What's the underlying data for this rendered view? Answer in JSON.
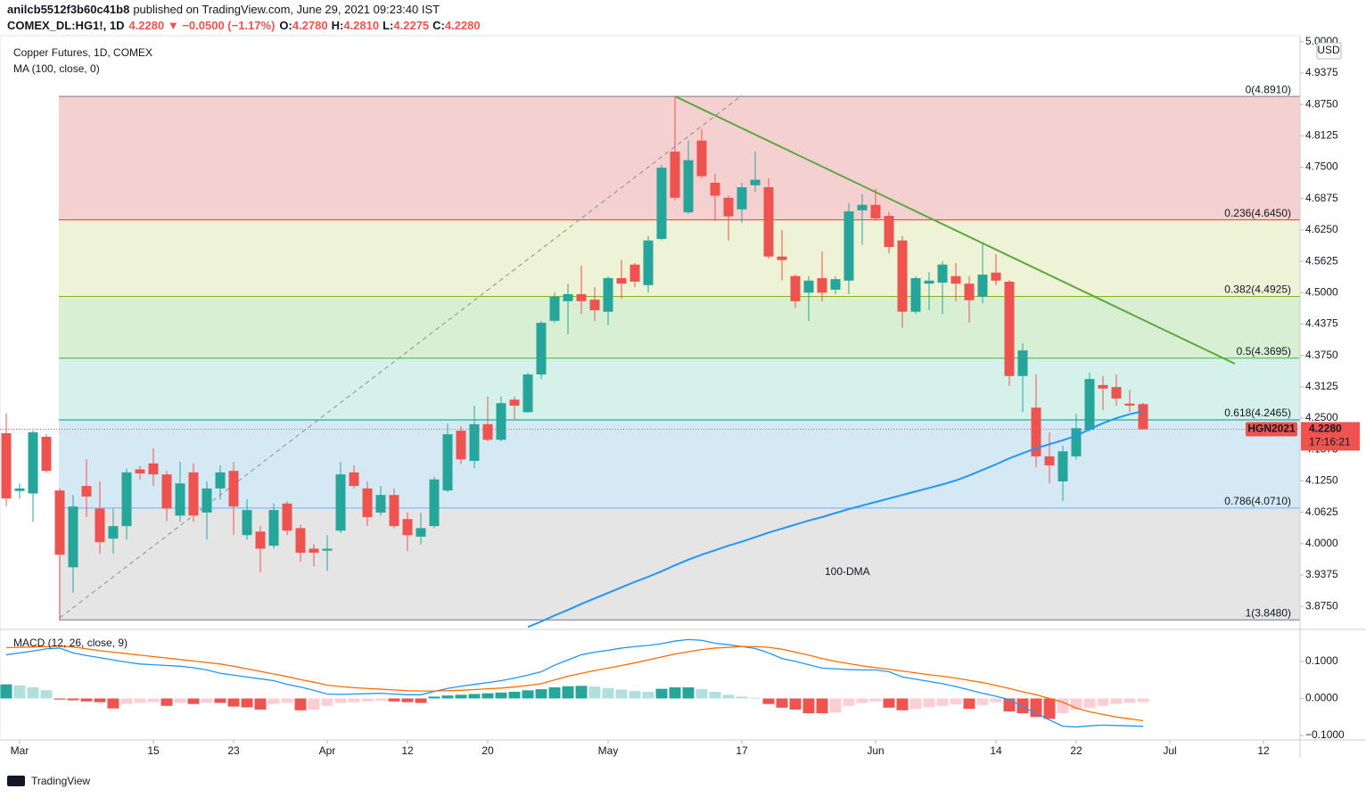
{
  "header": {
    "author": "anilcb5512f3b60c41b8",
    "published": "published on TradingView.com, June 29, 2021 09:23:40 IST",
    "symbol": "COMEX_DL:HG1!, 1D",
    "change": "4.2280 ▼ −0.0500 (−1.17%)",
    "ohlc": [
      {
        "key": "O:",
        "value": "4.2780"
      },
      {
        "key": "H:",
        "value": "4.2810"
      },
      {
        "key": "L:",
        "value": "4.2275"
      },
      {
        "key": "C:",
        "value": "4.2280"
      }
    ]
  },
  "chart_data": [
    {
      "type": "candlestick",
      "title": "Copper Futures, 1D, COMEX",
      "indicator": "MA (100, close, 0)",
      "currency": "USD",
      "x": [
        "2021-02-26",
        "2021-03-01",
        "2021-03-02",
        "2021-03-03",
        "2021-03-04",
        "2021-03-05",
        "2021-03-08",
        "2021-03-09",
        "2021-03-10",
        "2021-03-11",
        "2021-03-12",
        "2021-03-15",
        "2021-03-16",
        "2021-03-17",
        "2021-03-18",
        "2021-03-19",
        "2021-03-22",
        "2021-03-23",
        "2021-03-24",
        "2021-03-25",
        "2021-03-26",
        "2021-03-29",
        "2021-03-30",
        "2021-03-31",
        "2021-04-01",
        "2021-04-05",
        "2021-04-06",
        "2021-04-07",
        "2021-04-08",
        "2021-04-09",
        "2021-04-12",
        "2021-04-13",
        "2021-04-14",
        "2021-04-15",
        "2021-04-16",
        "2021-04-19",
        "2021-04-20",
        "2021-04-21",
        "2021-04-22",
        "2021-04-23",
        "2021-04-26",
        "2021-04-27",
        "2021-04-28",
        "2021-04-29",
        "2021-04-30",
        "2021-05-03",
        "2021-05-04",
        "2021-05-05",
        "2021-05-06",
        "2021-05-07",
        "2021-05-10",
        "2021-05-11",
        "2021-05-12",
        "2021-05-13",
        "2021-05-14",
        "2021-05-17",
        "2021-05-18",
        "2021-05-19",
        "2021-05-20",
        "2021-05-21",
        "2021-05-24",
        "2021-05-25",
        "2021-05-26",
        "2021-05-27",
        "2021-05-28",
        "2021-06-01",
        "2021-06-02",
        "2021-06-03",
        "2021-06-04",
        "2021-06-07",
        "2021-06-08",
        "2021-06-09",
        "2021-06-10",
        "2021-06-11",
        "2021-06-14",
        "2021-06-15",
        "2021-06-16",
        "2021-06-17",
        "2021-06-18",
        "2021-06-21",
        "2021-06-22",
        "2021-06-23",
        "2021-06-24",
        "2021-06-25",
        "2021-06-28",
        "2021-06-29"
      ],
      "open": [
        4.22,
        4.105,
        4.1,
        4.213,
        4.106,
        3.953,
        4.115,
        4.07,
        4.01,
        4.035,
        4.148,
        4.16,
        4.138,
        4.056,
        4.142,
        4.062,
        4.11,
        4.145,
        4.017,
        4.024,
        3.996,
        4.08,
        4.031,
        3.99,
        3.986,
        4.026,
        4.142,
        4.11,
        4.062,
        4.097,
        4.049,
        4.014,
        4.035,
        4.106,
        4.225,
        4.165,
        4.238,
        4.207,
        4.287,
        4.262,
        4.337,
        4.444,
        4.483,
        4.497,
        4.486,
        4.462,
        4.529,
        4.556,
        4.515,
        4.607,
        4.781,
        4.66,
        4.803,
        4.719,
        4.689,
        4.666,
        4.714,
        4.71,
        4.572,
        4.533,
        4.5,
        4.529,
        4.506,
        4.524,
        4.664,
        4.675,
        4.653,
        4.604,
        4.462,
        4.518,
        4.52,
        4.533,
        4.518,
        4.492,
        4.54,
        4.522,
        4.334,
        4.271,
        4.174,
        4.124,
        4.174,
        4.227,
        4.316,
        4.312,
        4.279,
        4.278
      ],
      "high": [
        4.26,
        4.12,
        4.225,
        4.218,
        4.11,
        4.097,
        4.168,
        4.124,
        4.07,
        4.15,
        4.155,
        4.19,
        4.145,
        4.163,
        4.16,
        4.124,
        4.156,
        4.163,
        4.088,
        4.035,
        4.08,
        4.085,
        4.038,
        3.999,
        4.017,
        4.163,
        4.156,
        4.124,
        4.115,
        4.11,
        4.062,
        4.062,
        4.133,
        4.239,
        4.234,
        4.275,
        4.293,
        4.293,
        4.293,
        4.341,
        4.444,
        4.5,
        4.518,
        4.554,
        4.511,
        4.533,
        4.565,
        4.559,
        4.613,
        4.755,
        4.891,
        4.803,
        4.826,
        4.737,
        4.693,
        4.719,
        4.781,
        4.728,
        4.625,
        4.536,
        4.533,
        4.582,
        4.533,
        4.678,
        4.696,
        4.707,
        4.661,
        4.613,
        4.533,
        4.541,
        4.563,
        4.559,
        4.533,
        4.6,
        4.577,
        4.525,
        4.399,
        4.337,
        4.222,
        4.195,
        4.259,
        4.341,
        4.334,
        4.337,
        4.307,
        4.281
      ],
      "low": [
        4.075,
        4.09,
        4.044,
        4.142,
        3.848,
        3.902,
        4.053,
        3.98,
        3.98,
        4.008,
        4.128,
        4.115,
        4.045,
        4.044,
        4.044,
        4.008,
        4.088,
        4.017,
        4.008,
        3.943,
        3.99,
        4.017,
        3.964,
        3.955,
        3.946,
        4.021,
        4.11,
        4.035,
        4.056,
        4.031,
        3.985,
        3.999,
        4.031,
        4.103,
        4.159,
        4.15,
        4.204,
        4.204,
        4.248,
        4.261,
        4.328,
        4.44,
        4.417,
        4.458,
        4.444,
        4.435,
        4.488,
        4.511,
        4.5,
        4.604,
        4.684,
        4.657,
        4.728,
        4.643,
        4.604,
        4.639,
        4.701,
        4.568,
        4.524,
        4.47,
        4.444,
        4.483,
        4.497,
        4.497,
        4.595,
        4.643,
        4.579,
        4.43,
        4.458,
        4.465,
        4.458,
        4.483,
        4.44,
        4.479,
        4.515,
        4.314,
        4.262,
        4.152,
        4.12,
        4.085,
        4.168,
        4.223,
        4.266,
        4.275,
        4.262,
        4.2275
      ],
      "close": [
        4.09,
        4.11,
        4.222,
        4.145,
        3.978,
        4.074,
        4.094,
        4.003,
        4.035,
        4.142,
        4.14,
        4.138,
        4.07,
        4.12,
        4.056,
        4.11,
        4.142,
        4.074,
        4.067,
        3.99,
        4.067,
        4.026,
        3.982,
        3.982,
        3.99,
        4.138,
        4.115,
        4.053,
        4.097,
        4.035,
        4.017,
        4.031,
        4.128,
        4.218,
        4.168,
        4.238,
        4.207,
        4.28,
        4.275,
        4.337,
        4.44,
        4.492,
        4.497,
        4.483,
        4.465,
        4.529,
        4.518,
        4.522,
        4.604,
        4.749,
        4.689,
        4.764,
        4.732,
        4.693,
        4.652,
        4.71,
        4.725,
        4.572,
        4.565,
        4.483,
        4.524,
        4.5,
        4.527,
        4.662,
        4.675,
        4.648,
        4.591,
        4.462,
        4.529,
        4.524,
        4.556,
        4.518,
        4.485,
        4.536,
        4.524,
        4.334,
        4.385,
        4.174,
        4.156,
        4.184,
        4.23,
        4.328,
        4.309,
        4.289,
        4.275,
        4.228
      ],
      "up_color": "#26a69a",
      "down_color": "#ef5350",
      "ma": {
        "name": "100-DMA",
        "color": "#2196f3",
        "values": [
          null,
          null,
          null,
          null,
          null,
          null,
          null,
          null,
          null,
          null,
          null,
          null,
          null,
          null,
          null,
          null,
          null,
          null,
          null,
          null,
          null,
          null,
          null,
          null,
          null,
          null,
          null,
          null,
          null,
          null,
          null,
          null,
          null,
          null,
          null,
          null,
          null,
          null,
          null,
          3.834,
          3.845,
          3.857,
          3.868,
          3.88,
          3.891,
          3.902,
          3.913,
          3.924,
          3.934,
          3.945,
          3.957,
          3.968,
          3.978,
          3.987,
          3.996,
          4.004,
          4.013,
          4.022,
          4.03,
          4.038,
          4.046,
          4.053,
          4.061,
          4.069,
          4.076,
          4.083,
          4.09,
          4.097,
          4.104,
          4.111,
          4.118,
          4.126,
          4.136,
          4.147,
          4.158,
          4.17,
          4.18,
          4.19,
          4.198,
          4.206,
          4.215,
          4.228,
          4.24,
          4.25,
          4.258,
          4.264
        ]
      },
      "fib_levels": [
        {
          "label": "0(4.8910)",
          "value": 4.891,
          "color": "#787b86",
          "fill": "#f5d0d0"
        },
        {
          "label": "0.236(4.6450)",
          "value": 4.645,
          "color": "#f23645",
          "fill": "#eef3d5"
        },
        {
          "label": "0.382(4.4925)",
          "value": 4.4925,
          "color": "#8bb21e",
          "fill": "#d9efd3"
        },
        {
          "label": "0.5(4.3695)",
          "value": 4.3695,
          "color": "#4caf50",
          "fill": "#d4f1ea"
        },
        {
          "label": "0.618(4.2465)",
          "value": 4.2465,
          "color": "#089981",
          "fill": "#d5e9f5"
        },
        {
          "label": "0.786(4.0710)",
          "value": 4.071,
          "color": "#64b5f6",
          "fill": "#e5e5e5"
        },
        {
          "label": "1(3.8480)",
          "value": 3.848,
          "color": "#787b86"
        }
      ],
      "ylim": [
        3.831,
        5.012
      ],
      "yticks": [
        {
          "value": 5,
          "label": "5.0000"
        },
        {
          "value": 4.9375,
          "label": "4.9375"
        },
        {
          "value": 4.875,
          "label": "4.8750"
        },
        {
          "value": 4.8125,
          "label": "4.8125"
        },
        {
          "value": 4.75,
          "label": "4.7500"
        },
        {
          "value": 4.6875,
          "label": "4.6875"
        },
        {
          "value": 4.625,
          "label": "4.6250"
        },
        {
          "value": 4.5625,
          "label": "4.5625"
        },
        {
          "value": 4.5,
          "label": "4.5000"
        },
        {
          "value": 4.4375,
          "label": "4.4375"
        },
        {
          "value": 4.375,
          "label": "4.3750"
        },
        {
          "value": 4.3125,
          "label": "4.3125"
        },
        {
          "value": 4.25,
          "label": "4.2500"
        },
        {
          "value": 4.1875,
          "label": "4.1875"
        },
        {
          "value": 4.125,
          "label": "4.1250"
        },
        {
          "value": 4.0625,
          "label": "4.0625"
        },
        {
          "value": 4,
          "label": "4.0000"
        },
        {
          "value": 3.9375,
          "label": "3.9375"
        },
        {
          "value": 3.875,
          "label": "3.8750"
        }
      ],
      "xticks": [
        {
          "value": "2021-03-01",
          "label": "Mar"
        },
        {
          "value": "2021-03-15",
          "label": "15"
        },
        {
          "value": "2021-03-23",
          "label": "23"
        },
        {
          "value": "2021-04-01",
          "label": "Apr"
        },
        {
          "value": "2021-04-12",
          "label": "12"
        },
        {
          "value": "2021-04-20",
          "label": "20"
        },
        {
          "value": "2021-05-03",
          "label": "May"
        },
        {
          "value": "2021-05-17",
          "label": "17"
        },
        {
          "value": "2021-06-01",
          "label": "Jun"
        },
        {
          "value": "2021-06-14",
          "label": "14"
        },
        {
          "value": "2021-06-22",
          "label": "22"
        },
        {
          "value": "2021-07-01",
          "label": "Jul"
        },
        {
          "value": "2021-07-12",
          "label": "12"
        }
      ],
      "last_price": {
        "value": 4.228,
        "label": "4.2280"
      },
      "symbol_tag": "HGN2021",
      "countdown": "17:16:21"
    },
    {
      "type": "macd",
      "title": "MACD (12, 26, close, 9)",
      "series": [
        {
          "color": "#2196f3",
          "values": [
            0.118,
            0.123,
            0.128,
            0.134,
            0.136,
            0.123,
            0.116,
            0.11,
            0.104,
            0.098,
            0.093,
            0.091,
            0.089,
            0.087,
            0.083,
            0.077,
            0.068,
            0.063,
            0.058,
            0.053,
            0.048,
            0.038,
            0.031,
            0.022,
            0.012,
            0.011,
            0.012,
            0.013,
            0.014,
            0.012,
            0.01,
            0.01,
            0.019,
            0.027,
            0.033,
            0.038,
            0.043,
            0.048,
            0.055,
            0.063,
            0.072,
            0.09,
            0.104,
            0.118,
            0.125,
            0.13,
            0.136,
            0.14,
            0.143,
            0.148,
            0.155,
            0.159,
            0.157,
            0.149,
            0.145,
            0.14,
            0.135,
            0.123,
            0.108,
            0.1,
            0.091,
            0.082,
            0.08,
            0.078,
            0.077,
            0.077,
            0.072,
            0.058,
            0.052,
            0.046,
            0.04,
            0.032,
            0.023,
            0.014,
            0.006,
            -0.003,
            -0.022,
            -0.04,
            -0.058,
            -0.075,
            -0.077,
            -0.074,
            -0.072,
            -0.073,
            -0.074,
            -0.075
          ]
        },
        {
          "color": "#ff6d00",
          "values": [
            0.137,
            0.138,
            0.139,
            0.14,
            0.141,
            0.139,
            0.134,
            0.129,
            0.125,
            0.121,
            0.117,
            0.113,
            0.109,
            0.105,
            0.101,
            0.097,
            0.093,
            0.087,
            0.08,
            0.073,
            0.066,
            0.059,
            0.051,
            0.044,
            0.036,
            0.032,
            0.029,
            0.027,
            0.025,
            0.023,
            0.021,
            0.02,
            0.02,
            0.021,
            0.022,
            0.024,
            0.026,
            0.028,
            0.031,
            0.035,
            0.04,
            0.05,
            0.06,
            0.068,
            0.075,
            0.082,
            0.089,
            0.096,
            0.104,
            0.112,
            0.12,
            0.126,
            0.132,
            0.136,
            0.138,
            0.14,
            0.14,
            0.138,
            0.133,
            0.125,
            0.117,
            0.108,
            0.1,
            0.094,
            0.088,
            0.083,
            0.079,
            0.074,
            0.069,
            0.064,
            0.06,
            0.055,
            0.049,
            0.043,
            0.035,
            0.027,
            0.018,
            0.01,
            0,
            -0.01,
            -0.026,
            -0.036,
            -0.043,
            -0.05,
            -0.055,
            -0.06
          ]
        }
      ],
      "histogram": {
        "colors": [
          "#26a69a",
          "#b2dfdb",
          "#ffcdd2",
          "#ef5350"
        ],
        "values": [
          0.038,
          0.035,
          0.03,
          0.022,
          -0.003,
          -0.005,
          -0.008,
          -0.01,
          -0.027,
          -0.015,
          -0.012,
          -0.01,
          -0.02,
          -0.012,
          -0.015,
          -0.012,
          -0.012,
          -0.022,
          -0.024,
          -0.03,
          -0.015,
          -0.012,
          -0.032,
          -0.03,
          -0.02,
          -0.012,
          -0.01,
          -0.008,
          -0.006,
          -0.008,
          -0.01,
          -0.012,
          0.005,
          0.008,
          0.01,
          0.012,
          0.014,
          0.016,
          0.018,
          0.022,
          0.025,
          0.03,
          0.033,
          0.034,
          0.032,
          0.028,
          0.024,
          0.02,
          0.018,
          0.026,
          0.03,
          0.03,
          0.025,
          0.018,
          0.01,
          0.005,
          0.002,
          -0.015,
          -0.025,
          -0.03,
          -0.04,
          -0.04,
          -0.038,
          -0.02,
          -0.012,
          -0.008,
          -0.025,
          -0.032,
          -0.028,
          -0.024,
          -0.02,
          -0.016,
          -0.028,
          -0.018,
          -0.01,
          -0.035,
          -0.04,
          -0.05,
          -0.055,
          -0.04,
          -0.03,
          -0.025,
          -0.02,
          -0.015,
          -0.012,
          -0.01
        ]
      },
      "ylim": [
        -0.112,
        0.184
      ],
      "yticks": [
        {
          "value": 0.1,
          "label": "0.1000"
        },
        {
          "value": 0,
          "label": "0.0000"
        },
        {
          "value": -0.1,
          "label": "−0.1000"
        }
      ]
    }
  ],
  "footer": {
    "brand": "TradingView"
  }
}
